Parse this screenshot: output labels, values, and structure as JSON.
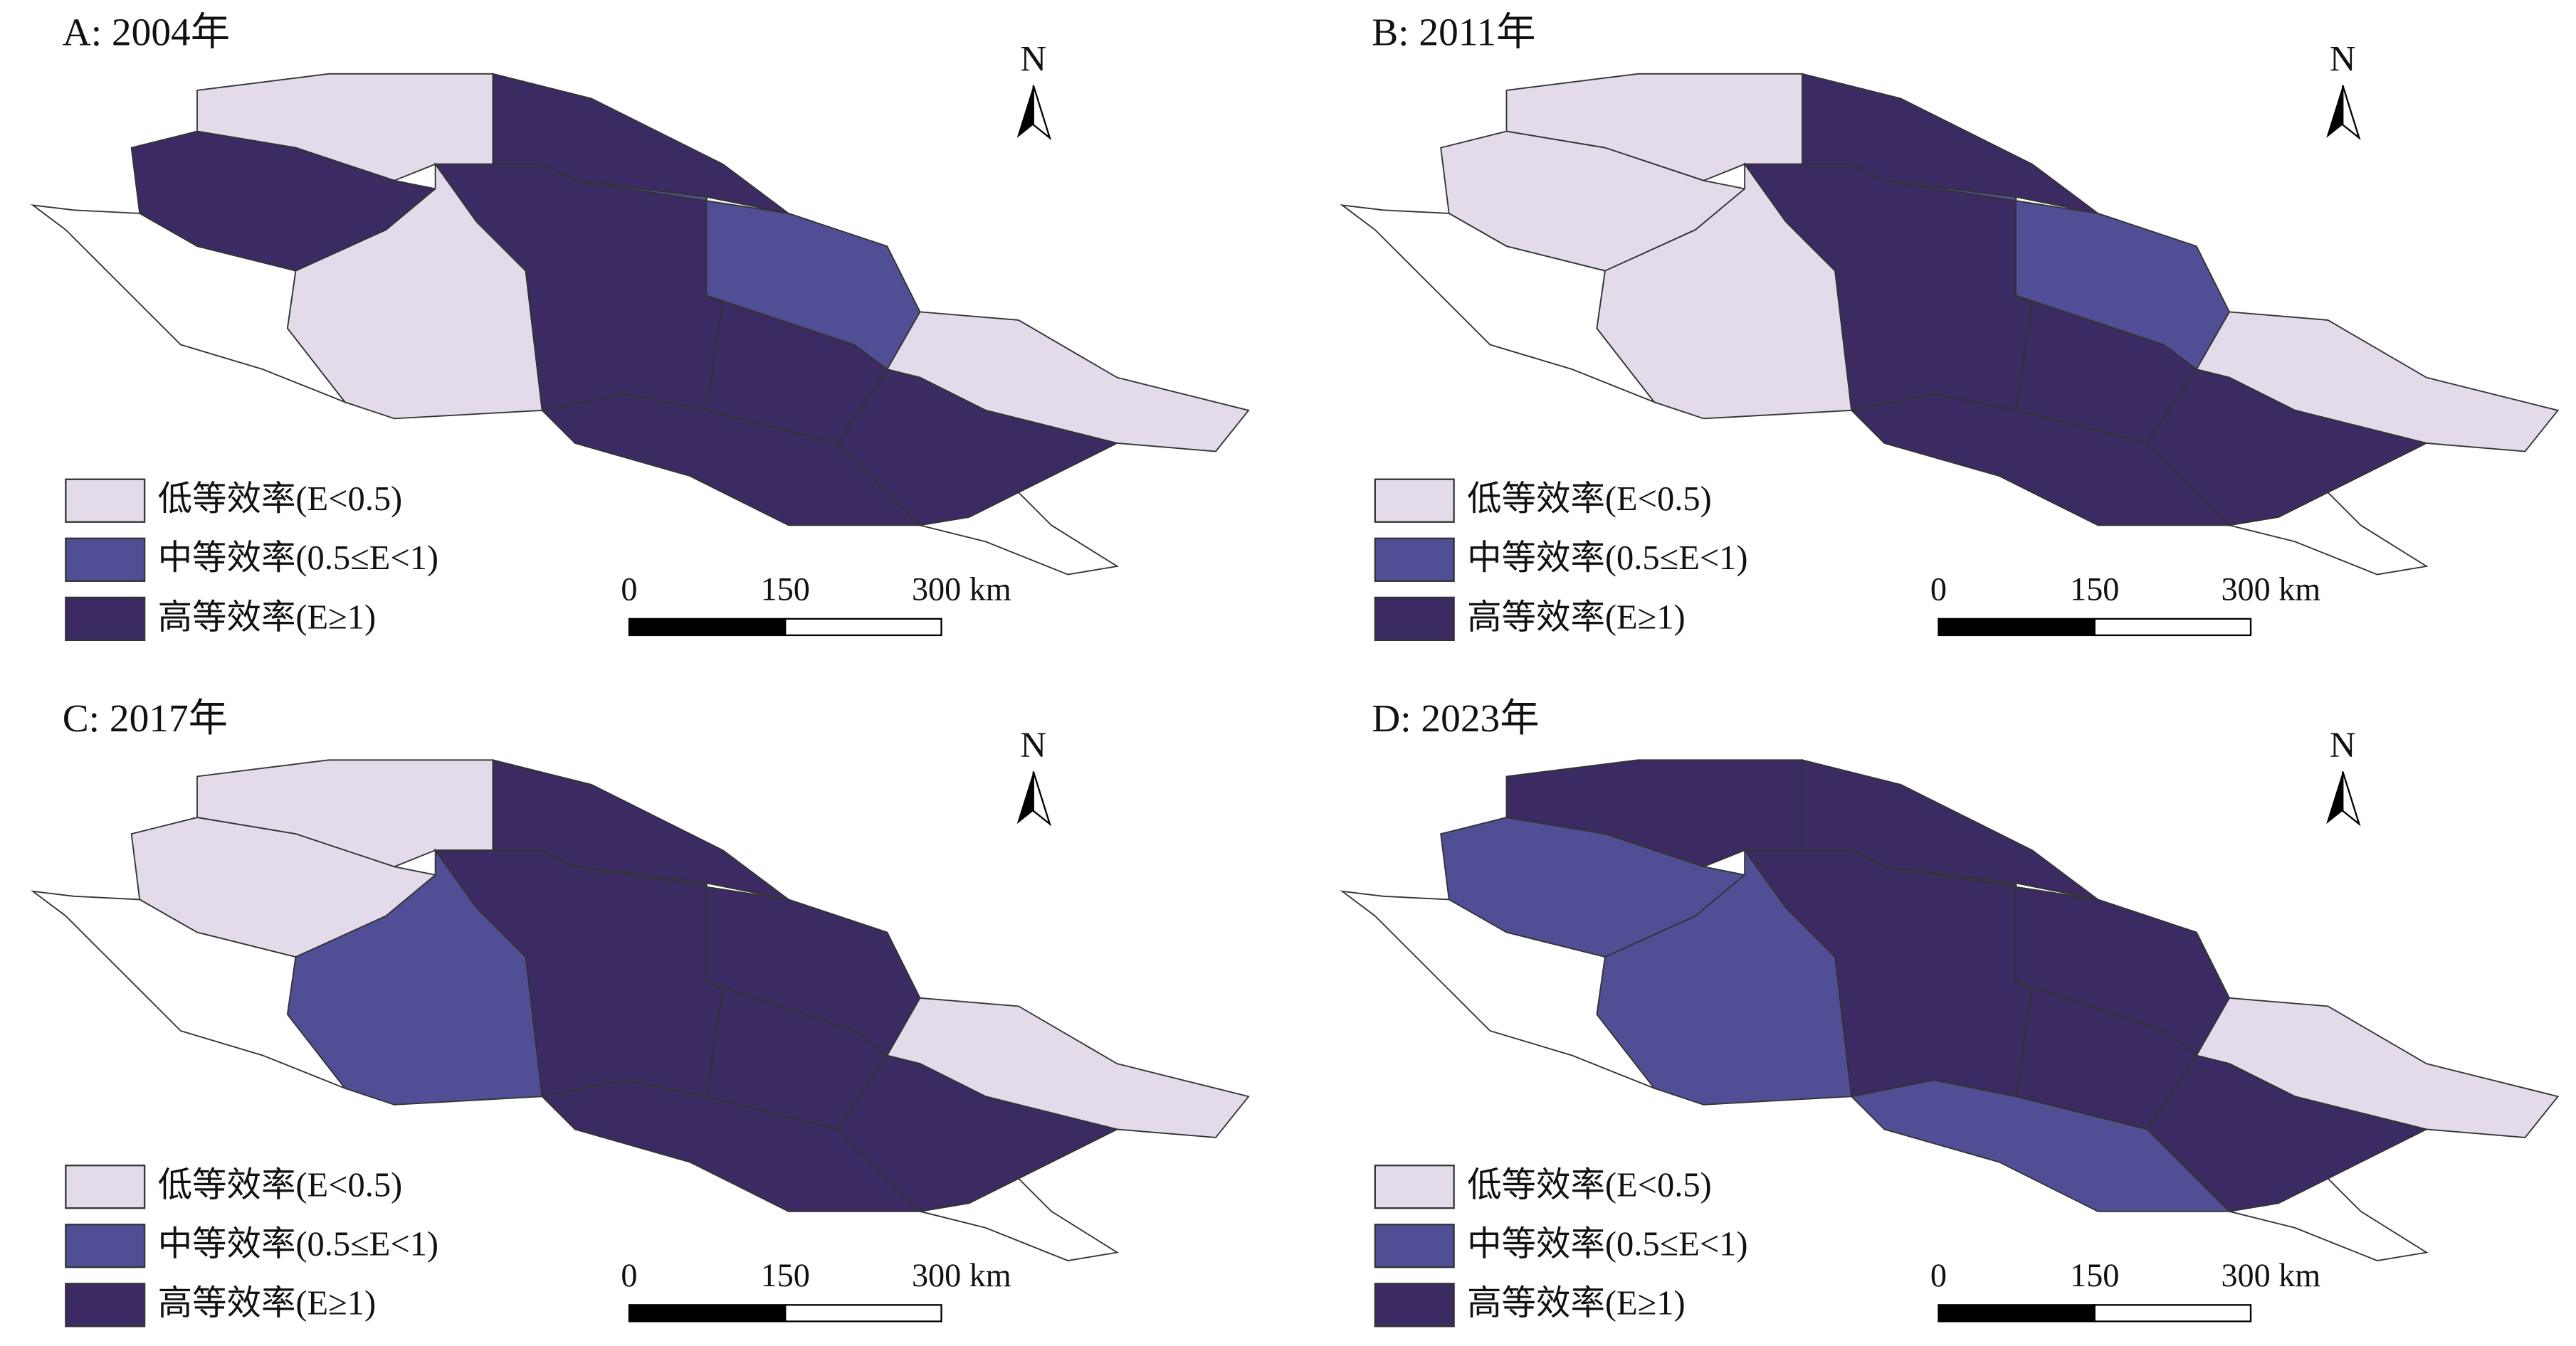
{
  "panels": [
    {
      "title": "A: 2004年"
    },
    {
      "title": "B: 2011年"
    },
    {
      "title": "C: 2017年"
    },
    {
      "title": "D: 2023年"
    }
  ],
  "legend": [
    {
      "label": "低等效率(E<0.5)",
      "color": "#e3dbea"
    },
    {
      "label": "中等效率(0.5≤E<1)",
      "color": "#504f96"
    },
    {
      "label": "高等效率(E≥1)",
      "color": "#3c2a62"
    }
  ],
  "scale_bar": {
    "labels": [
      "0",
      "150",
      "300 km"
    ]
  },
  "north": "N"
}
